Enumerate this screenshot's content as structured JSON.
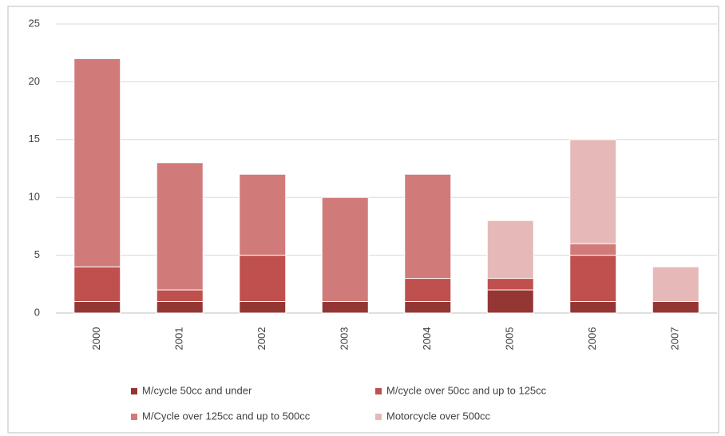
{
  "chart_data": {
    "type": "stacked_bar",
    "categories": [
      "2000",
      "2001",
      "2002",
      "2003",
      "2004",
      "2005",
      "2006",
      "2007"
    ],
    "series": [
      {
        "name": "M/cycle 50cc and under",
        "color": "#943634",
        "values": [
          1,
          1,
          1,
          1,
          1,
          2,
          1,
          1
        ]
      },
      {
        "name": "M/cycle over 50cc and up to 125cc",
        "color": "#c0504d",
        "values": [
          3,
          1,
          4,
          0,
          2,
          1,
          4,
          0
        ]
      },
      {
        "name": "M/Cycle over 125cc and up to 500cc",
        "color": "#d07b7a",
        "values": [
          18,
          11,
          7,
          9,
          9,
          0,
          1,
          0
        ]
      },
      {
        "name": "Motorcycle over 500cc",
        "color": "#e6b9b8",
        "values": [
          0,
          0,
          0,
          0,
          0,
          5,
          9,
          3
        ]
      }
    ],
    "ylim": [
      0,
      25
    ],
    "yticks": [
      0,
      5,
      10,
      15,
      20,
      25
    ],
    "grid": true
  }
}
